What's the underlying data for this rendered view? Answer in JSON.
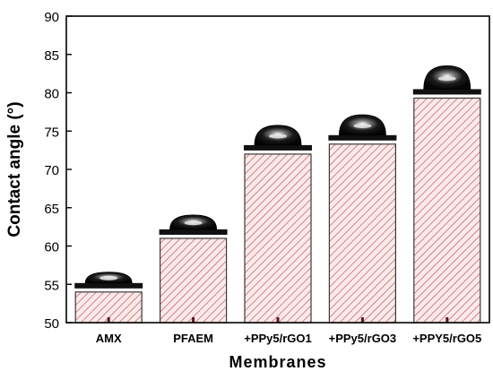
{
  "chart_data": {
    "type": "bar",
    "categories": [
      "AMX",
      "PFAEM",
      "+PPy5/rGO1",
      "+PPy5/rGO3",
      "+PPY5/rGO5"
    ],
    "values": [
      54,
      61,
      72,
      73.3,
      79.3
    ],
    "xlabel": "Membranes",
    "ylabel": "Contact angle (°)",
    "ylim": [
      50,
      90
    ],
    "yticks": [
      "50",
      "55",
      "60",
      "65",
      "70",
      "75",
      "80",
      "85",
      "90"
    ],
    "grid": false,
    "bar_fill": "hatched",
    "colors": {
      "bar_hatch": "#c96a6a",
      "bar_fill": "#fbeaea",
      "bar_edge": "#3a3a3a",
      "droplet": "#111111",
      "axis": "#000000"
    }
  }
}
